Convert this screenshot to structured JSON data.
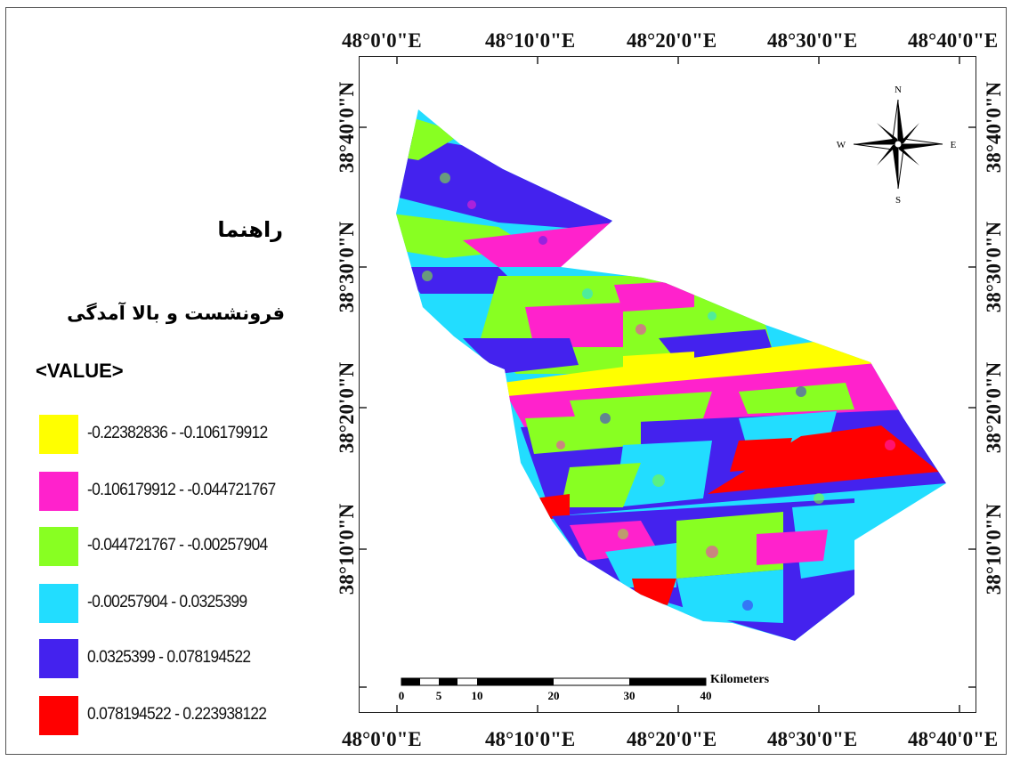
{
  "legend": {
    "title": "راهنما",
    "subtitle": "فرونشست و بالا آمدگی",
    "field": "<VALUE>",
    "classes": [
      {
        "label": "-0.22382836 - -0.106179912",
        "color": "#ffff00"
      },
      {
        "label": "-0.106179912 - -0.044721767",
        "color": "#ff22cc"
      },
      {
        "label": "-0.044721767 - -0.00257904",
        "color": "#88ff22"
      },
      {
        "label": "-0.00257904 - 0.0325399",
        "color": "#22ddff"
      },
      {
        "label": "0.0325399 - 0.078194522",
        "color": "#4422ee"
      },
      {
        "label": "0.078194522 - 0.223938122",
        "color": "#ff0000"
      }
    ]
  },
  "map": {
    "lon_labels": [
      "48°0'0\"E",
      "48°10'0\"E",
      "48°20'0\"E",
      "48°30'0\"E",
      "48°40'0\"E"
    ],
    "lat_labels": [
      "38°40'0\"N",
      "38°30'0\"N",
      "38°20'0\"N",
      "38°10'0\"N"
    ],
    "north_arrow": {
      "n": "N",
      "s": "S",
      "e": "E",
      "w": "W"
    },
    "scale_bar": {
      "unit": "Kilometers",
      "ticks": [
        "0",
        "5",
        "10",
        "20",
        "30",
        "40"
      ]
    }
  }
}
